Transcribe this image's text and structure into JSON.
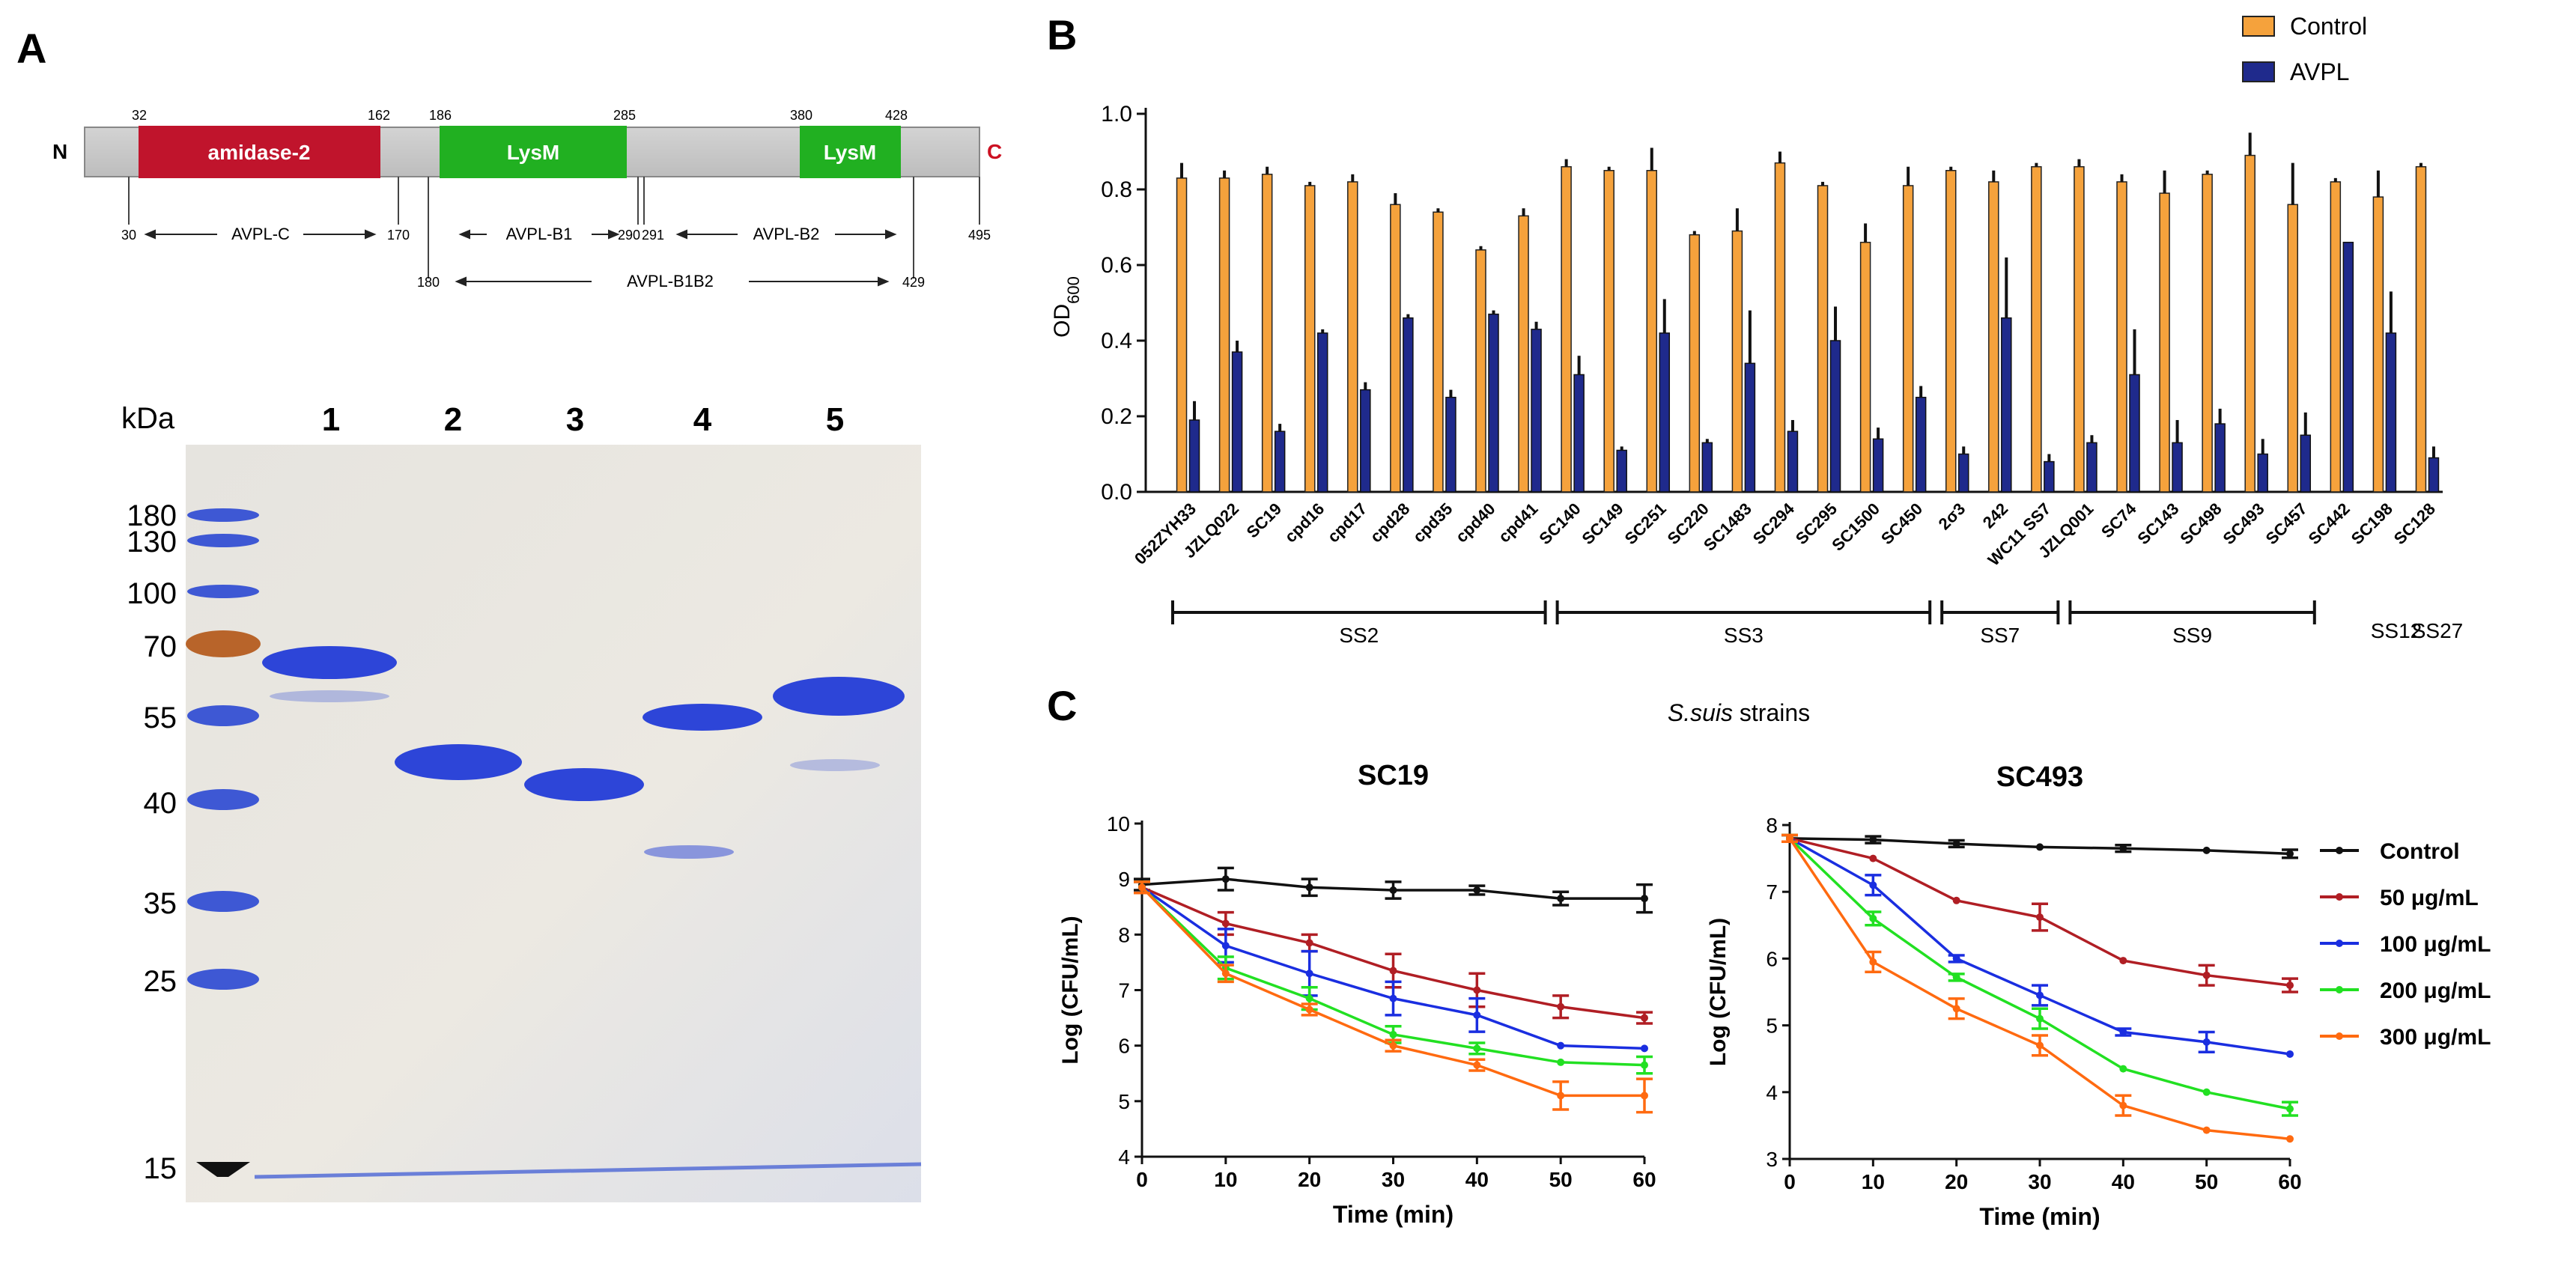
{
  "panel_labels": {
    "a": "A",
    "b": "B",
    "c": "C"
  },
  "domain_map": {
    "n_term": "N",
    "c_term": "C",
    "domains": [
      {
        "name": "amidase-2",
        "start_label": "32",
        "end_label": "162",
        "color": "#c0142c"
      },
      {
        "name": "LysM",
        "start_label": "186",
        "end_label": "285",
        "color": "#21b021"
      },
      {
        "name": "LysM",
        "start_label": "380",
        "end_label": "428",
        "color": "#21b021"
      }
    ],
    "cut_labels": [
      "30",
      "170",
      "290",
      "291",
      "495",
      "180",
      "429"
    ],
    "constructs": [
      "AVPL-C",
      "AVPL-B1",
      "AVPL-B2",
      "AVPL-B1B2"
    ]
  },
  "gel": {
    "kda_label": "kDa",
    "lanes": [
      "1",
      "2",
      "3",
      "4",
      "5"
    ],
    "markers": [
      "180",
      "130",
      "100",
      "70",
      "55",
      "40",
      "35",
      "25",
      "15"
    ]
  },
  "chart_data": [
    {
      "type": "bar",
      "panel": "B",
      "ylabel": "OD",
      "ylabel_sub": "600",
      "ylim": [
        0,
        1.0
      ],
      "yticks": [
        "0.0",
        "0.2",
        "0.4",
        "0.6",
        "0.8",
        "1.0"
      ],
      "legend": {
        "position": "top-right",
        "entries": [
          "Control",
          "AVPL"
        ]
      },
      "colors": {
        "Control": "#f5a23c",
        "AVPL": "#1f2a8c"
      },
      "categories": [
        "052ZYH33",
        "JZLQ022",
        "SC19",
        "cpd16",
        "cpd17",
        "cpd28",
        "cpd35",
        "cpd40",
        "cpd41",
        "SC140",
        "SC149",
        "SC251",
        "SC220",
        "SC1483",
        "SC294",
        "SC295",
        "SC1500",
        "SC450",
        "2σ3",
        "242",
        "WC11 SS7",
        "JZLQ001",
        "SC74",
        "SC143",
        "SC498",
        "SC493",
        "SC457",
        "SC442",
        "SC198",
        "SC128"
      ],
      "series": [
        {
          "name": "Control",
          "values": [
            0.83,
            0.83,
            0.84,
            0.81,
            0.82,
            0.76,
            0.74,
            0.64,
            0.73,
            0.86,
            0.85,
            0.85,
            0.68,
            0.69,
            0.87,
            0.81,
            0.66,
            0.81,
            0.85,
            0.82,
            0.86,
            0.86,
            0.82,
            0.79,
            0.84,
            0.89,
            0.76,
            0.82,
            0.78,
            0.86
          ],
          "errors": [
            0.04,
            0.02,
            0.02,
            0.01,
            0.02,
            0.03,
            0.01,
            0.01,
            0.02,
            0.02,
            0.01,
            0.06,
            0.01,
            0.06,
            0.03,
            0.01,
            0.05,
            0.05,
            0.01,
            0.03,
            0.01,
            0.02,
            0.02,
            0.06,
            0.01,
            0.06,
            0.11,
            0.01,
            0.07,
            0.01
          ]
        },
        {
          "name": "AVPL",
          "values": [
            0.19,
            0.37,
            0.16,
            0.42,
            0.27,
            0.46,
            0.25,
            0.47,
            0.43,
            0.31,
            0.11,
            0.42,
            0.13,
            0.34,
            0.16,
            0.4,
            0.14,
            0.25,
            0.1,
            0.46,
            0.08,
            0.13,
            0.31,
            0.13,
            0.18,
            0.1,
            0.15,
            0.66,
            0.42,
            0.09
          ]
        },
        {
          "name": "AVPL_error",
          "values": [
            0.05,
            0.03,
            0.02,
            0.01,
            0.02,
            0.01,
            0.02,
            0.01,
            0.02,
            0.05,
            0.01,
            0.09,
            0.01,
            0.14,
            0.03,
            0.09,
            0.03,
            0.03,
            0.02,
            0.16,
            0.02,
            0.02,
            0.12,
            0.06,
            0.04,
            0.04,
            0.06,
            0.0,
            0.11,
            0.03
          ]
        }
      ],
      "groups": [
        {
          "label": "SS2",
          "from": 0,
          "to": 8
        },
        {
          "label": "SS3",
          "from": 9,
          "to": 17
        },
        {
          "label": "SS7",
          "from": 18,
          "to": 20
        },
        {
          "label": "SS9",
          "from": 21,
          "to": 26
        },
        {
          "label": "SS12",
          "from": 27,
          "to": 27
        },
        {
          "label": "SS27",
          "from": 28,
          "to": 29
        }
      ]
    },
    {
      "type": "line",
      "panel": "C-left",
      "suptitle_italic": "S.suis",
      "suptitle_rest": " strains",
      "title": "SC19",
      "xlabel": "Time (min)",
      "ylabel": "Log (CFU/mL)",
      "x": [
        0,
        10,
        20,
        30,
        40,
        50,
        60
      ],
      "xlim": [
        0,
        60
      ],
      "ylim": [
        4,
        10
      ],
      "yticks": [
        4,
        5,
        6,
        7,
        8,
        9,
        10
      ],
      "series": [
        {
          "name": "Control",
          "color": "#111111",
          "values": [
            8.9,
            9.0,
            8.85,
            8.8,
            8.8,
            8.65,
            8.65
          ],
          "errors": [
            0.1,
            0.2,
            0.15,
            0.15,
            0.08,
            0.12,
            0.25
          ]
        },
        {
          "name": "50 μg/mL",
          "color": "#b01e24",
          "values": [
            8.85,
            8.2,
            7.85,
            7.35,
            7.0,
            6.7,
            6.5
          ],
          "errors": [
            0.1,
            0.2,
            0.15,
            0.3,
            0.3,
            0.2,
            0.1
          ]
        },
        {
          "name": "100 μg/mL",
          "color": "#1a2ee0",
          "values": [
            8.85,
            7.8,
            7.3,
            6.85,
            6.55,
            6.0,
            5.95
          ],
          "errors": [
            0.1,
            0.3,
            0.4,
            0.3,
            0.3,
            0.0,
            0.0
          ]
        },
        {
          "name": "200 μg/mL",
          "color": "#22e022",
          "values": [
            8.85,
            7.4,
            6.85,
            6.2,
            5.95,
            5.7,
            5.65
          ],
          "errors": [
            0.1,
            0.2,
            0.2,
            0.15,
            0.1,
            0.0,
            0.15
          ]
        },
        {
          "name": "300 μg/mL",
          "color": "#ff6a10",
          "values": [
            8.85,
            7.3,
            6.65,
            6.0,
            5.65,
            5.1,
            5.1
          ],
          "errors": [
            0.1,
            0.15,
            0.1,
            0.1,
            0.1,
            0.25,
            0.3
          ]
        }
      ]
    },
    {
      "type": "line",
      "panel": "C-right",
      "title": "SC493",
      "xlabel": "Time (min)",
      "ylabel": "Log (CFU/mL)",
      "x": [
        0,
        10,
        20,
        30,
        40,
        50,
        60
      ],
      "xlim": [
        0,
        60
      ],
      "ylim": [
        3,
        8
      ],
      "yticks": [
        3,
        4,
        5,
        6,
        7,
        8
      ],
      "legend": {
        "position": "right",
        "entries": [
          "Control",
          "50 μg/mL",
          "100 μg/mL",
          "200 μg/mL",
          "300 μg/mL"
        ]
      },
      "series": [
        {
          "name": "Control",
          "color": "#111111",
          "values": [
            7.8,
            7.78,
            7.72,
            7.67,
            7.65,
            7.62,
            7.57
          ],
          "errors": [
            0.05,
            0.05,
            0.05,
            0.0,
            0.05,
            0.0,
            0.06
          ]
        },
        {
          "name": "50 μg/mL",
          "color": "#b01e24",
          "values": [
            7.8,
            7.5,
            6.87,
            6.62,
            5.97,
            5.75,
            5.6
          ],
          "errors": [
            0.05,
            0.0,
            0.0,
            0.2,
            0.0,
            0.15,
            0.1
          ]
        },
        {
          "name": "100 μg/mL",
          "color": "#1a2ee0",
          "values": [
            7.8,
            7.1,
            6.0,
            5.45,
            4.9,
            4.75,
            4.57
          ],
          "errors": [
            0.05,
            0.15,
            0.05,
            0.15,
            0.05,
            0.15,
            0.0
          ]
        },
        {
          "name": "200 μg/mL",
          "color": "#22e022",
          "values": [
            7.8,
            6.6,
            5.72,
            5.1,
            4.35,
            4.0,
            3.75
          ],
          "errors": [
            0.05,
            0.1,
            0.05,
            0.15,
            0.0,
            0.0,
            0.1
          ]
        },
        {
          "name": "300 μg/mL",
          "color": "#ff6a10",
          "values": [
            7.8,
            5.95,
            5.25,
            4.7,
            3.8,
            3.43,
            3.3
          ],
          "errors": [
            0.05,
            0.15,
            0.15,
            0.15,
            0.15,
            0.0,
            0.0
          ]
        }
      ]
    }
  ]
}
